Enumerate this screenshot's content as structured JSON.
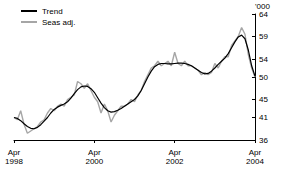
{
  "chart_data": {
    "type": "line",
    "y_label": "'000",
    "categories": [
      "Apr 1998",
      null,
      null,
      null,
      null,
      null,
      null,
      null,
      null,
      null,
      null,
      null,
      null,
      null,
      null,
      null,
      null,
      null,
      null,
      null,
      null,
      null,
      null,
      null,
      "Apr 2000",
      null,
      null,
      null,
      null,
      null,
      null,
      null,
      null,
      null,
      null,
      null,
      null,
      null,
      null,
      null,
      null,
      null,
      null,
      null,
      null,
      null,
      null,
      null,
      "Apr 2002",
      null,
      null,
      null,
      null,
      null,
      null,
      null,
      null,
      null,
      null,
      null,
      null,
      null,
      null,
      null,
      null,
      null,
      null,
      null,
      null,
      null,
      null,
      null,
      "Apr 2004"
    ],
    "series": [
      {
        "name": "Trend",
        "color": "#000000",
        "values": [
          41,
          40.8,
          40.3,
          39.6,
          39,
          38.6,
          38.5,
          38.8,
          39.4,
          40.2,
          41,
          42,
          42.8,
          43.3,
          43.7,
          44,
          44.5,
          45.3,
          46.3,
          47.2,
          47.8,
          48,
          47.9,
          47.4,
          46.6,
          45.4,
          44.2,
          43.2,
          42.5,
          42.2,
          42.3,
          42.6,
          43,
          43.5,
          44,
          44.5,
          45,
          45.8,
          47,
          48.5,
          50,
          51.3,
          52.3,
          52.8,
          53,
          53,
          52.9,
          52.9,
          53,
          53.1,
          53.1,
          53,
          52.8,
          52.5,
          52,
          51.5,
          51,
          50.7,
          50.8,
          51.3,
          52,
          52.8,
          53.5,
          54.2,
          55.2,
          56.5,
          57.8,
          58.9,
          59.3,
          58.5,
          56,
          52.5,
          50.2
        ]
      },
      {
        "name": "Seas adj.",
        "color": "#a6a6a6",
        "values": [
          41,
          40.5,
          42.5,
          39.5,
          37.5,
          38,
          38.5,
          39,
          40,
          40.5,
          42,
          43,
          42.5,
          43.5,
          44,
          43.5,
          45,
          45.5,
          46,
          49,
          48.5,
          47.5,
          48.5,
          47,
          45.5,
          44.5,
          42,
          44,
          42.5,
          40,
          41.5,
          42.5,
          43.5,
          43.5,
          44,
          45,
          44.5,
          46,
          47,
          49,
          50.5,
          52,
          52.5,
          53.5,
          52.5,
          53,
          53.5,
          52.5,
          55.5,
          53,
          52.5,
          53.5,
          52.5,
          52.5,
          52,
          51.5,
          50.5,
          51,
          50.5,
          51,
          53,
          52,
          53.5,
          54.5,
          54.5,
          57,
          58,
          59,
          61,
          59.5,
          55,
          52,
          50
        ]
      }
    ],
    "ylim": [
      36,
      64
    ],
    "yticks": [
      36,
      41,
      45,
      50,
      54,
      59,
      64
    ],
    "grid": false,
    "legend": "top-left"
  }
}
